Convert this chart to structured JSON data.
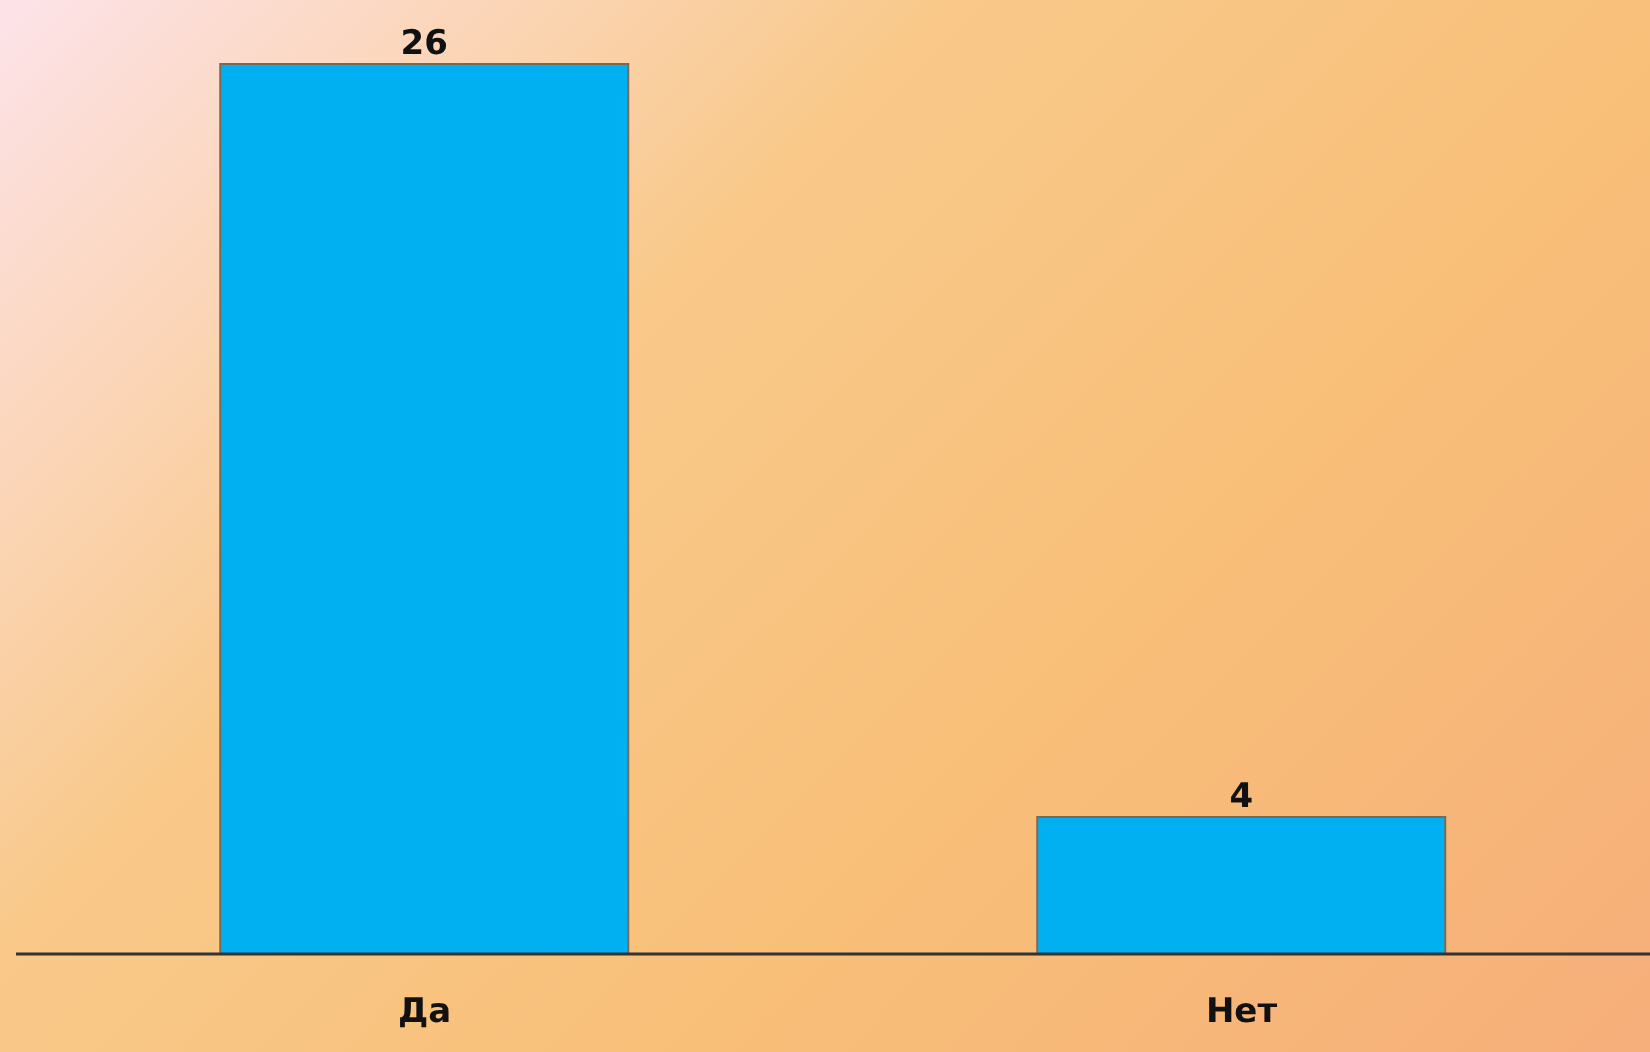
{
  "chart_data": {
    "type": "bar",
    "categories": [
      "Да",
      "Нет"
    ],
    "values": [
      26,
      4
    ],
    "color": "#00b0f0",
    "data_labels": true
  }
}
